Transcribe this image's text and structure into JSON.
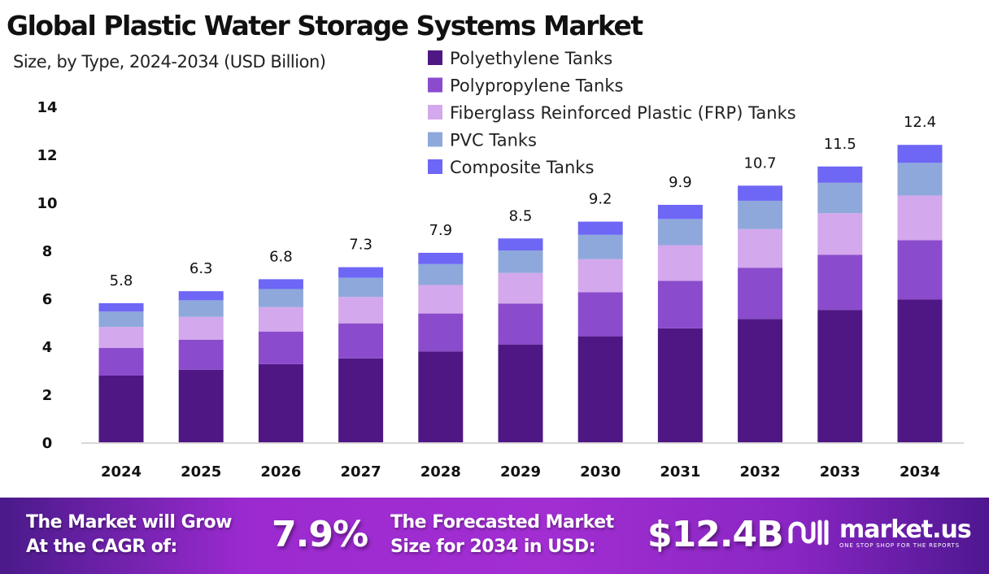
{
  "chart_data": {
    "type": "bar",
    "stacked": true,
    "title": "Global Plastic Water Storage Systems Market",
    "subtitle": "Size, by Type, 2024-2034 (USD Billion)",
    "xlabel": "",
    "ylabel": "",
    "ylim": [
      0,
      14
    ],
    "yticks": [
      0,
      2,
      4,
      6,
      8,
      10,
      12,
      14
    ],
    "grid": false,
    "legend_position": "top-center",
    "categories": [
      "2024",
      "2025",
      "2026",
      "2027",
      "2028",
      "2029",
      "2030",
      "2031",
      "2032",
      "2033",
      "2034"
    ],
    "totals": [
      5.8,
      6.3,
      6.8,
      7.3,
      7.9,
      8.5,
      9.2,
      9.9,
      10.7,
      11.5,
      12.4
    ],
    "total_labels": [
      "5.8",
      "6.3",
      "6.8",
      "7.3",
      "7.9",
      "8.5",
      "9.2",
      "9.9",
      "10.7",
      "11.5",
      "12.4"
    ],
    "series": [
      {
        "name": "Polyethylene Tanks",
        "color": "#4f1783",
        "values": [
          2.78,
          3.02,
          3.26,
          3.5,
          3.79,
          4.08,
          4.42,
          4.75,
          5.14,
          5.52,
          5.95
        ]
      },
      {
        "name": "Polypropylene Tanks",
        "color": "#8a4ccc",
        "values": [
          1.16,
          1.26,
          1.36,
          1.46,
          1.58,
          1.7,
          1.84,
          1.98,
          2.14,
          2.3,
          2.48
        ]
      },
      {
        "name": "Fiberglass Reinforced Plastic (FRP) Tanks",
        "color": "#d4a8ec",
        "values": [
          0.87,
          0.95,
          1.02,
          1.1,
          1.19,
          1.28,
          1.38,
          1.49,
          1.61,
          1.73,
          1.86
        ]
      },
      {
        "name": "PVC Tanks",
        "color": "#8ea8dc",
        "values": [
          0.64,
          0.69,
          0.75,
          0.8,
          0.87,
          0.94,
          1.01,
          1.09,
          1.18,
          1.27,
          1.36
        ]
      },
      {
        "name": "Composite Tanks",
        "color": "#6e66f5",
        "values": [
          0.35,
          0.38,
          0.41,
          0.44,
          0.47,
          0.5,
          0.55,
          0.59,
          0.63,
          0.68,
          0.75
        ]
      }
    ]
  },
  "footer": {
    "cagr_label_line1": "The Market will Grow",
    "cagr_label_line2": "At the CAGR of:",
    "cagr_value": "7.9%",
    "forecast_label_line1": "The Forecasted Market",
    "forecast_label_line2": "Size for 2034 in USD:",
    "forecast_value": "$12.4B",
    "logo_name": "market.us",
    "logo_tagline": "ONE STOP SHOP FOR THE REPORTS"
  }
}
